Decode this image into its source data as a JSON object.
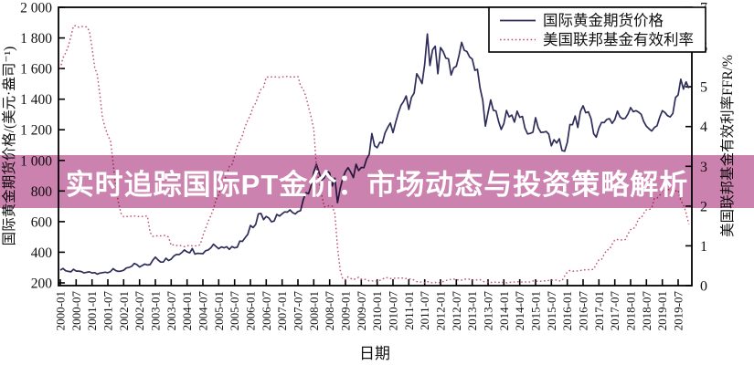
{
  "banner": {
    "title": "实时追踪国际PT金价：市场动态与投资策略解析",
    "bg_color": "#cb82ae",
    "text_color": "#ffffff"
  },
  "legend": {
    "items": [
      {
        "label": "国际黄金期货价格",
        "color": "#2e2d5a",
        "line": "solid"
      },
      {
        "label": "美国联邦基金有效利率",
        "color": "#bf5068",
        "line": "dotted"
      }
    ]
  },
  "chart_data": {
    "type": "line",
    "x_start": "2000-01",
    "x_interval": "monthly",
    "x_axis": {
      "label": "日期",
      "tick_labels": [
        "2000-01",
        "2000-07",
        "2001-01",
        "2001-07",
        "2002-01",
        "2002-07",
        "2003-01",
        "2003-07",
        "2004-01",
        "2004-07",
        "2005-01",
        "2005-07",
        "2006-01",
        "2006-07",
        "2007-01",
        "2007-07",
        "2008-01",
        "2008-07",
        "2009-01",
        "2009-07",
        "2010-01",
        "2010-07",
        "2011-01",
        "2011-07",
        "2012-01",
        "2012-07",
        "2013-01",
        "2013-07",
        "2014-01",
        "2014-07",
        "2015-01",
        "2015-07",
        "2016-01",
        "2016-07",
        "2017-01",
        "2017-07",
        "2018-01",
        "2018-07",
        "2019-01",
        "2019-07"
      ],
      "tick_every_months": 6
    },
    "left_axis": {
      "label": "国际黄金期货价格/(美元·盎司⁻¹)",
      "tick_labels": [
        "2 000",
        "1 800",
        "1 600",
        "1 400",
        "1 200",
        "1 000",
        "800",
        "600",
        "400",
        "200"
      ],
      "tick_values": [
        2000,
        1800,
        1600,
        1400,
        1200,
        1000,
        800,
        600,
        400,
        200
      ],
      "range": [
        200,
        2000
      ]
    },
    "right_axis": {
      "label": "美国联邦基金有效利率FFR/%",
      "tick_labels": [
        "7",
        "6",
        "5",
        "4",
        "3",
        "2",
        "1",
        "0"
      ],
      "tick_values": [
        7,
        6,
        5,
        4,
        3,
        2,
        1,
        0
      ],
      "range": [
        0,
        7
      ]
    },
    "series": [
      {
        "name": "国际黄金期货价格",
        "axis": "left",
        "color": "#2e2d5a",
        "line": "solid",
        "values": [
          283,
          294,
          279,
          275,
          272,
          289,
          277,
          277,
          274,
          265,
          269,
          272,
          265,
          267,
          257,
          264,
          267,
          270,
          266,
          274,
          293,
          280,
          275,
          277,
          282,
          297,
          301,
          308,
          327,
          319,
          304,
          313,
          323,
          317,
          319,
          347,
          368,
          350,
          336,
          336,
          361,
          346,
          355,
          375,
          386,
          385,
          398,
          415,
          402,
          396,
          424,
          388,
          393,
          392,
          391,
          410,
          415,
          429,
          453,
          438,
          423,
          435,
          429,
          436,
          419,
          437,
          429,
          433,
          473,
          471,
          495,
          517,
          575,
          561,
          582,
          651,
          653,
          613,
          634,
          623,
          599,
          604,
          647,
          636,
          651,
          664,
          662,
          677,
          659,
          650,
          666,
          672,
          743,
          789,
          783,
          834,
          923,
          975,
          921,
          871,
          886,
          930,
          918,
          833,
          884,
          724,
          816,
          884,
          928,
          952,
          923,
          888,
          975,
          934,
          954,
          953,
          1008,
          1040,
          1175,
          1096,
          1083,
          1118,
          1114,
          1180,
          1215,
          1244,
          1181,
          1248,
          1309,
          1359,
          1385,
          1421,
          1333,
          1411,
          1439,
          1566,
          1536,
          1502,
          1628,
          1826,
          1620,
          1722,
          1746,
          1566,
          1737,
          1711,
          1668,
          1664,
          1558,
          1604,
          1615,
          1685,
          1771,
          1719,
          1711,
          1676,
          1662,
          1588,
          1595,
          1472,
          1393,
          1224,
          1312,
          1395,
          1327,
          1323,
          1253,
          1202,
          1240,
          1326,
          1284,
          1296,
          1250,
          1322,
          1281,
          1287,
          1211,
          1173,
          1176,
          1184,
          1279,
          1213,
          1183,
          1184,
          1189,
          1172,
          1095,
          1135,
          1114,
          1141,
          1065,
          1060,
          1116,
          1234,
          1233,
          1290,
          1215,
          1320,
          1357,
          1311,
          1317,
          1272,
          1174,
          1152,
          1211,
          1248,
          1247,
          1268,
          1272,
          1242,
          1267,
          1322,
          1284,
          1271,
          1275,
          1303,
          1345,
          1318,
          1325,
          1315,
          1300,
          1253,
          1223,
          1206,
          1192,
          1215,
          1226,
          1281,
          1325,
          1313,
          1292,
          1284,
          1306,
          1410,
          1428,
          1530,
          1466,
          1513,
          1472
        ]
      },
      {
        "name": "美国联邦基金有效利率",
        "axis": "right",
        "color": "#bf5068",
        "line": "dotted",
        "values": [
          5.45,
          5.73,
          5.85,
          6.02,
          6.27,
          6.53,
          6.54,
          6.5,
          6.52,
          6.51,
          6.51,
          6.4,
          5.98,
          5.49,
          5.31,
          4.8,
          4.21,
          3.97,
          3.77,
          3.65,
          3.07,
          2.49,
          2.09,
          1.82,
          1.73,
          1.74,
          1.73,
          1.75,
          1.75,
          1.75,
          1.73,
          1.74,
          1.75,
          1.75,
          1.34,
          1.24,
          1.24,
          1.26,
          1.25,
          1.26,
          1.26,
          1.22,
          1.01,
          1.03,
          1.01,
          1.01,
          1.0,
          0.98,
          1.0,
          1.01,
          1.0,
          1.0,
          1.0,
          1.03,
          1.26,
          1.43,
          1.61,
          1.76,
          1.93,
          2.16,
          2.28,
          2.5,
          2.63,
          2.79,
          3.0,
          3.04,
          3.26,
          3.5,
          3.62,
          3.78,
          4.0,
          4.16,
          4.29,
          4.49,
          4.59,
          4.79,
          4.94,
          4.99,
          5.24,
          5.25,
          5.25,
          5.25,
          5.25,
          5.24,
          5.25,
          5.26,
          5.26,
          5.25,
          5.25,
          5.25,
          5.26,
          5.02,
          4.94,
          4.76,
          4.49,
          4.24,
          3.94,
          2.98,
          2.61,
          2.28,
          1.98,
          2.0,
          2.01,
          2.0,
          1.81,
          0.97,
          0.39,
          0.16,
          0.15,
          0.22,
          0.18,
          0.15,
          0.18,
          0.21,
          0.16,
          0.16,
          0.15,
          0.12,
          0.12,
          0.12,
          0.11,
          0.13,
          0.16,
          0.2,
          0.2,
          0.18,
          0.18,
          0.19,
          0.19,
          0.19,
          0.19,
          0.18,
          0.17,
          0.16,
          0.14,
          0.1,
          0.09,
          0.09,
          0.07,
          0.1,
          0.08,
          0.07,
          0.08,
          0.07,
          0.08,
          0.1,
          0.13,
          0.14,
          0.16,
          0.16,
          0.16,
          0.13,
          0.14,
          0.16,
          0.16,
          0.16,
          0.14,
          0.15,
          0.14,
          0.15,
          0.11,
          0.09,
          0.09,
          0.08,
          0.08,
          0.09,
          0.08,
          0.09,
          0.07,
          0.07,
          0.08,
          0.09,
          0.09,
          0.1,
          0.09,
          0.09,
          0.09,
          0.09,
          0.09,
          0.12,
          0.11,
          0.11,
          0.11,
          0.12,
          0.12,
          0.13,
          0.13,
          0.14,
          0.14,
          0.12,
          0.12,
          0.24,
          0.34,
          0.38,
          0.36,
          0.37,
          0.37,
          0.38,
          0.39,
          0.4,
          0.4,
          0.4,
          0.41,
          0.54,
          0.65,
          0.66,
          0.79,
          0.9,
          0.91,
          1.04,
          1.15,
          1.16,
          1.15,
          1.15,
          1.16,
          1.3,
          1.41,
          1.42,
          1.51,
          1.69,
          1.7,
          1.82,
          1.91,
          1.91,
          1.95,
          2.19,
          2.2,
          2.27,
          2.4,
          2.4,
          2.41,
          2.42,
          2.39,
          2.38,
          2.4,
          2.13,
          2.04,
          1.83,
          1.55
        ]
      }
    ]
  }
}
